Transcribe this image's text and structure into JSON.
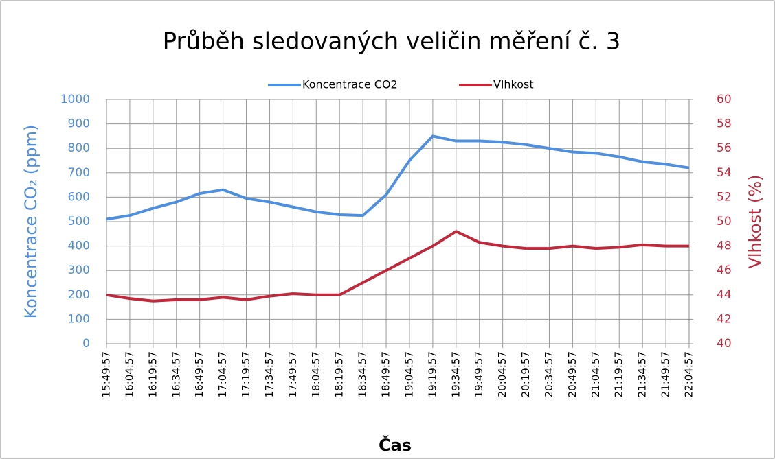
{
  "chart_data": {
    "type": "line",
    "title": "Průběh sledovaných veličin měření č. 3",
    "xlabel": "Čas",
    "ylabel": "Koncentrace CO₂ (ppm)",
    "y2label": "Vlhkost (%)",
    "categories": [
      "15:49:57",
      "16:04:57",
      "16:19:57",
      "16:34:57",
      "16:49:57",
      "17:04:57",
      "17:19:57",
      "17:34:57",
      "17:49:57",
      "18:04:57",
      "18:19:57",
      "18:34:57",
      "18:49:57",
      "19:04:57",
      "19:19:57",
      "19:34:57",
      "19:49:57",
      "20:04:57",
      "20:19:57",
      "20:34:57",
      "20:49:57",
      "21:04:57",
      "21:19:57",
      "21:34:57",
      "21:49:57",
      "22:04:57"
    ],
    "series": [
      {
        "name": "Koncentrace CO2",
        "color": "#4f8fe0",
        "values": [
          510,
          525,
          555,
          580,
          615,
          630,
          595,
          580,
          560,
          540,
          528,
          525,
          610,
          750,
          850,
          830,
          830,
          825,
          815,
          800,
          785,
          780,
          765,
          745,
          735,
          720
        ]
      },
      {
        "name": "Vlhkost",
        "color": "#c0283c",
        "axis": "y2",
        "values": [
          44.0,
          43.7,
          43.5,
          43.6,
          43.6,
          43.8,
          43.6,
          43.9,
          44.1,
          44.0,
          44.0,
          45.0,
          46.0,
          47.0,
          48.0,
          49.2,
          48.3,
          48.0,
          47.8,
          47.8,
          48.0,
          47.8,
          47.9,
          48.1,
          48.0,
          48.0
        ]
      }
    ],
    "ylim": [
      0,
      1000
    ],
    "yticks": [
      0,
      100,
      200,
      300,
      400,
      500,
      600,
      700,
      800,
      900,
      1000
    ],
    "y2lim": [
      40,
      60
    ],
    "y2ticks": [
      40,
      42,
      44,
      46,
      48,
      50,
      52,
      54,
      56,
      58,
      60
    ],
    "grid": true,
    "legend": "top"
  }
}
